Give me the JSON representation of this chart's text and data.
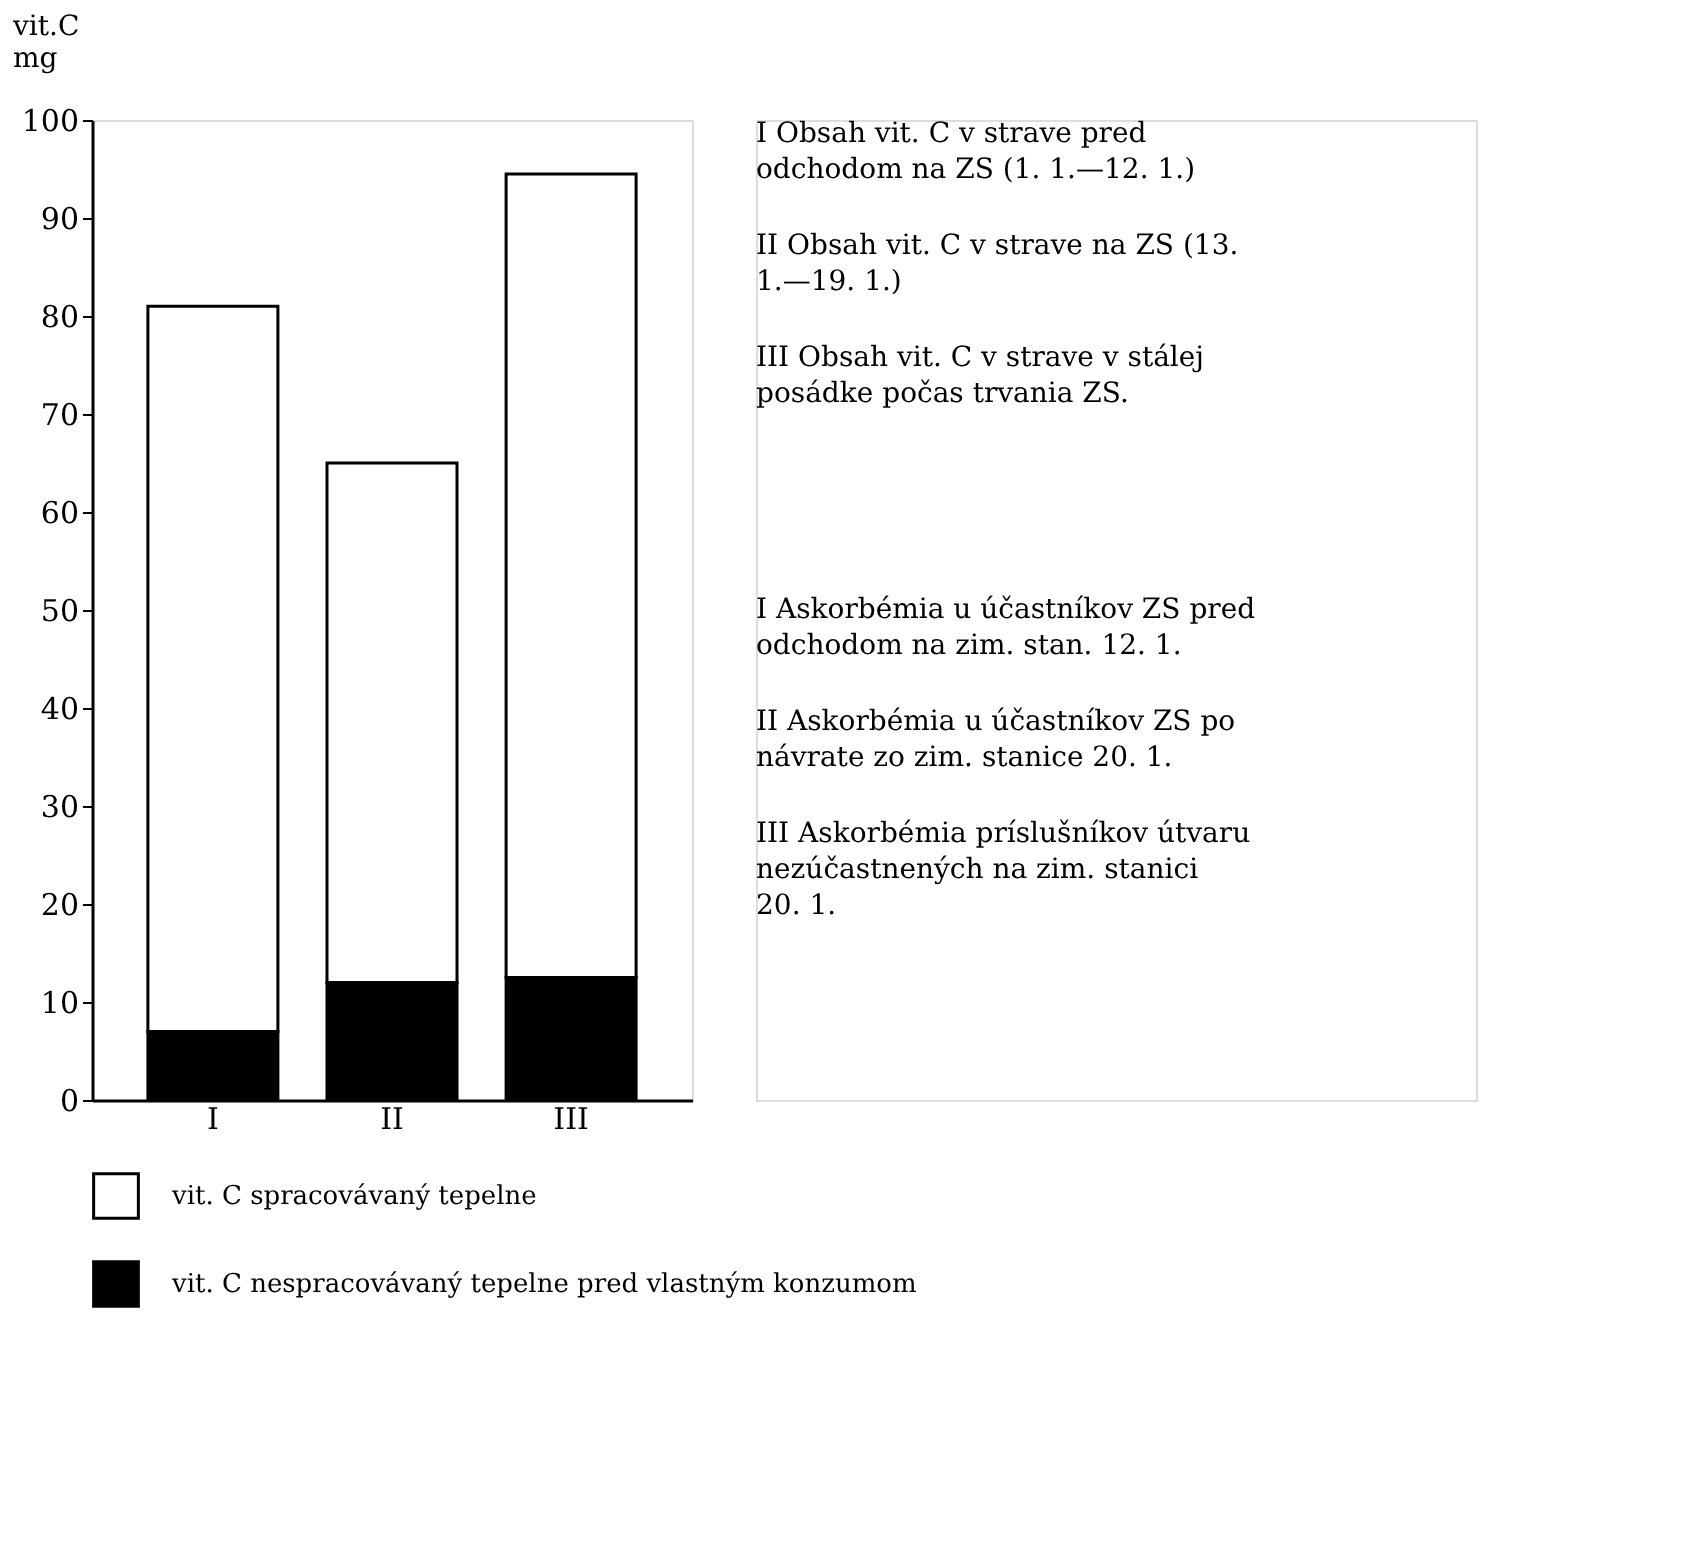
{
  "chart_data": {
    "type": "bar",
    "stacked": true,
    "ylabel": "vit.C mg",
    "categories": [
      "I",
      "II",
      "III"
    ],
    "series": [
      {
        "name": "vit. C nespracovávaný tepelne pred vlastným konzumom",
        "color": "#000000",
        "values": [
          7,
          12,
          12.5
        ]
      },
      {
        "name": "vit. C spracovávaný tepelne",
        "color": "#ffffff",
        "values": [
          74,
          53,
          82
        ]
      }
    ],
    "ylim": [
      0,
      100
    ],
    "yticks": [
      0,
      10,
      20,
      30,
      40,
      50,
      60,
      70,
      80,
      90,
      100
    ],
    "grid": false,
    "legend": "bottom",
    "annotations": [
      "I Obsah vit. C v strave pred odchodom na ZS (1. 1.—12. 1.)",
      "II Obsah vit. C v strave na ZS (13. 1.—19. 1.)",
      "III Obsah vit. C v strave v stálej posádke počas trvania ZS.",
      "I Askorbémia u účastníkov ZS pred odchodom na zim. stan. 12. 1.",
      "II Askorbémia u účastníkov ZS po návrate zo zim. stanice 20. 1.",
      "III Askorbémia príslušníkov útvaru nezúčastnených na zim. stanici 20. 1."
    ]
  }
}
